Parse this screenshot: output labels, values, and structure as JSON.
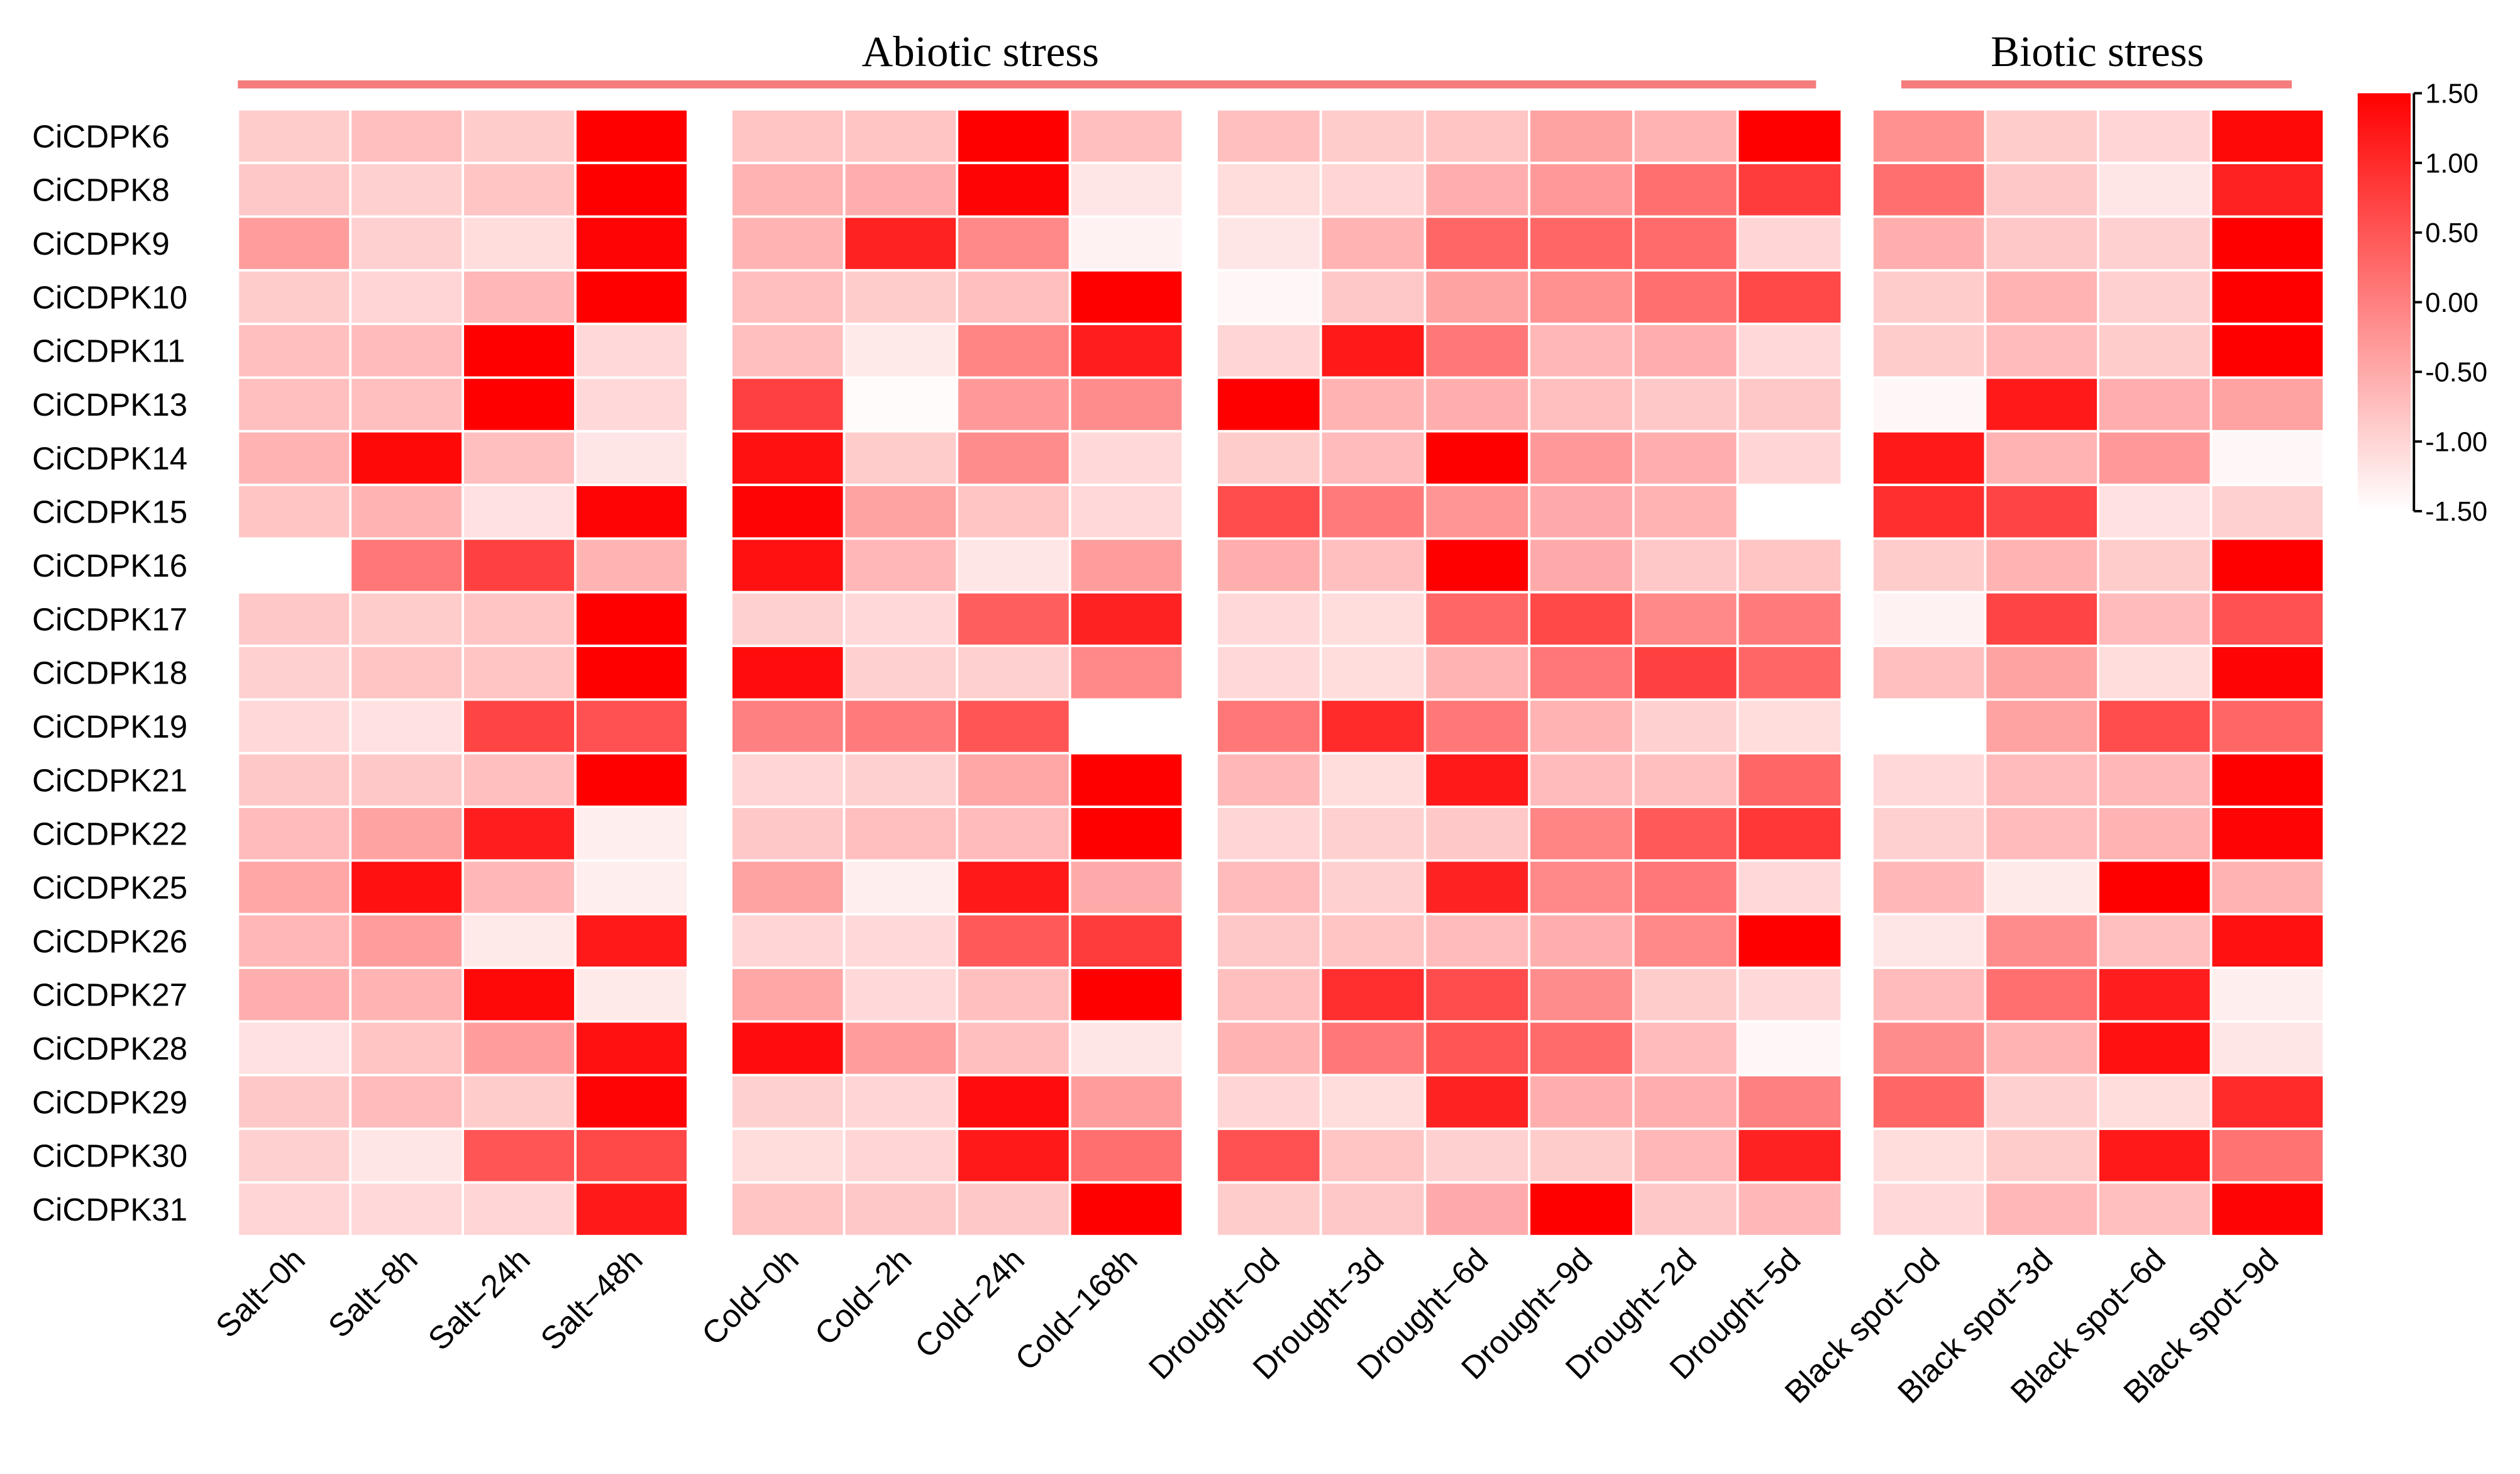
{
  "chart_data": {
    "type": "heatmap",
    "title": "",
    "groups": [
      {
        "label": "Abiotic stress",
        "columns": [
          "Salt-0h",
          "Salt-8h",
          "Salt-24h",
          "Salt-48h",
          "Cold-0h",
          "Cold-2h",
          "Cold-24h",
          "Cold-168h",
          "Drought-0d",
          "Drought-3d",
          "Drought-6d",
          "Drought-9d",
          "Drought-2d",
          "Drought-5d"
        ]
      },
      {
        "label": "Biotic stress",
        "columns": [
          "Black spot-0d",
          "Black spot-3d",
          "Black spot-6d",
          "Black spot-9d"
        ]
      }
    ],
    "columns": [
      "Salt−0h",
      "Salt−8h",
      "Salt−24h",
      "Salt−48h",
      "Cold−0h",
      "Cold−2h",
      "Cold−24h",
      "Cold−168h",
      "Drought−0d",
      "Drought−3d",
      "Drought−6d",
      "Drought−9d",
      "Drought−2d",
      "Drought−5d",
      "Black spot−0d",
      "Black spot−3d",
      "Black spot−6d",
      "Black spot−9d"
    ],
    "rows": [
      "CiCDPK6",
      "CiCDPK8",
      "CiCDPK9",
      "CiCDPK10",
      "CiCDPK11",
      "CiCDPK13",
      "CiCDPK14",
      "CiCDPK15",
      "CiCDPK16",
      "CiCDPK17",
      "CiCDPK18",
      "CiCDPK19",
      "CiCDPK21",
      "CiCDPK22",
      "CiCDPK25",
      "CiCDPK26",
      "CiCDPK27",
      "CiCDPK28",
      "CiCDPK29",
      "CiCDPK30",
      "CiCDPK31"
    ],
    "values": [
      [
        -0.9,
        -0.75,
        -0.9,
        1.5,
        -0.8,
        -0.8,
        1.5,
        -0.75,
        -0.75,
        -0.9,
        -0.8,
        -0.4,
        -0.6,
        1.5,
        -0.2,
        -0.9,
        -1.0,
        1.4
      ],
      [
        -0.85,
        -0.95,
        -0.8,
        1.5,
        -0.6,
        -0.55,
        1.45,
        -1.2,
        -1.1,
        -1.0,
        -0.55,
        -0.3,
        0.2,
        0.8,
        0.2,
        -0.85,
        -1.2,
        1.1
      ],
      [
        -0.35,
        -0.95,
        -1.1,
        1.45,
        -0.6,
        1.1,
        -0.1,
        -1.35,
        -1.2,
        -0.6,
        0.3,
        0.3,
        0.25,
        -1.0,
        -0.55,
        -0.85,
        -0.95,
        1.5
      ],
      [
        -0.9,
        -1.0,
        -0.65,
        1.5,
        -0.75,
        -0.9,
        -0.75,
        1.5,
        -1.4,
        -0.85,
        -0.4,
        -0.2,
        0.2,
        0.65,
        -0.9,
        -0.6,
        -0.95,
        1.5
      ],
      [
        -0.75,
        -0.7,
        1.5,
        -1.05,
        -0.75,
        -1.25,
        -0.05,
        1.15,
        -1.0,
        1.2,
        0.1,
        -0.65,
        -0.55,
        -1.05,
        -0.9,
        -0.7,
        -0.9,
        1.5
      ],
      [
        -0.75,
        -0.75,
        1.5,
        -1.05,
        0.75,
        -1.45,
        -0.3,
        -0.15,
        1.5,
        -0.6,
        -0.55,
        -0.75,
        -0.85,
        -0.85,
        -1.4,
        1.2,
        -0.55,
        -0.4
      ],
      [
        -0.6,
        1.4,
        -0.75,
        -1.2,
        1.3,
        -0.9,
        -0.15,
        -1.05,
        -0.9,
        -0.7,
        1.5,
        -0.3,
        -0.55,
        -1.0,
        1.2,
        -0.6,
        -0.3,
        -1.4
      ],
      [
        -0.8,
        -0.6,
        -1.15,
        1.45,
        1.45,
        -0.4,
        -0.8,
        -1.05,
        0.6,
        0.05,
        -0.25,
        -0.5,
        -0.6,
        -1.5,
        0.95,
        0.7,
        -1.15,
        -0.95
      ],
      [
        -1.5,
        0.1,
        0.75,
        -0.6,
        1.3,
        -0.65,
        -1.2,
        -0.35,
        -0.55,
        -0.75,
        1.5,
        -0.5,
        -0.85,
        -0.8,
        -0.9,
        -0.6,
        -0.9,
        1.5
      ],
      [
        -0.85,
        -0.9,
        -0.8,
        1.5,
        -0.95,
        -1.05,
        0.4,
        1.1,
        -1.05,
        -1.1,
        0.3,
        0.65,
        -0.1,
        0.05,
        -1.35,
        0.7,
        -0.7,
        0.55
      ],
      [
        -0.95,
        -0.8,
        -0.8,
        1.5,
        1.35,
        -0.95,
        -0.95,
        -0.1,
        -1.05,
        -1.1,
        -0.6,
        0.1,
        0.75,
        0.3,
        -0.75,
        -0.4,
        -1.1,
        1.45
      ],
      [
        -1.05,
        -1.15,
        0.7,
        0.55,
        0.0,
        0.05,
        0.5,
        -1.5,
        0.1,
        1.0,
        0.1,
        -0.6,
        -0.95,
        -1.1,
        -1.5,
        -0.4,
        0.6,
        0.3
      ],
      [
        -0.85,
        -0.85,
        -0.75,
        1.5,
        -1.0,
        -0.95,
        -0.45,
        1.5,
        -0.65,
        -1.1,
        1.2,
        -0.7,
        -0.75,
        0.3,
        -1.05,
        -0.7,
        -0.65,
        1.5
      ],
      [
        -0.7,
        -0.4,
        1.15,
        -1.3,
        -0.85,
        -0.75,
        -0.7,
        1.5,
        -1.0,
        -0.95,
        -0.85,
        -0.05,
        0.45,
        0.85,
        -0.95,
        -0.7,
        -0.6,
        1.45
      ],
      [
        -0.45,
        1.3,
        -0.65,
        -1.3,
        -0.4,
        -1.3,
        1.2,
        -0.5,
        -0.7,
        -0.95,
        1.1,
        -0.1,
        0.1,
        -1.05,
        -0.65,
        -1.25,
        1.5,
        -0.6
      ],
      [
        -0.65,
        -0.35,
        -1.25,
        1.2,
        -1.0,
        -1.05,
        0.45,
        0.8,
        -0.85,
        -0.8,
        -0.7,
        -0.55,
        -0.1,
        1.5,
        -1.2,
        -0.15,
        -0.75,
        1.3
      ],
      [
        -0.55,
        -0.6,
        1.4,
        -1.25,
        -0.45,
        -1.05,
        -0.75,
        1.5,
        -0.75,
        0.95,
        0.6,
        -0.15,
        -0.9,
        -1.05,
        -0.7,
        0.2,
        1.15,
        -1.3
      ],
      [
        -1.15,
        -0.8,
        -0.35,
        1.3,
        1.35,
        -0.35,
        -0.75,
        -1.2,
        -0.6,
        0.1,
        0.5,
        0.25,
        -0.7,
        -1.4,
        -0.15,
        -0.6,
        1.3,
        -1.2
      ],
      [
        -0.85,
        -0.7,
        -0.9,
        1.45,
        -0.95,
        -1.0,
        1.35,
        -0.35,
        -1.0,
        -1.1,
        1.1,
        -0.55,
        -0.55,
        0.0,
        0.3,
        -0.95,
        -1.1,
        1.0
      ],
      [
        -0.95,
        -1.2,
        0.5,
        0.65,
        -1.1,
        -1.0,
        1.2,
        0.2,
        0.55,
        -0.8,
        -0.95,
        -0.9,
        -0.65,
        1.1,
        -1.1,
        -0.9,
        1.2,
        0.15
      ],
      [
        -1.0,
        -1.05,
        -1.0,
        1.2,
        -0.8,
        -0.85,
        -0.85,
        1.5,
        -0.9,
        -0.85,
        -0.5,
        1.5,
        -0.85,
        -0.65,
        -1.05,
        -0.65,
        -0.75,
        1.45
      ]
    ],
    "colorbar": {
      "min": -1.5,
      "max": 1.5,
      "low_color": "#ffffff",
      "high_color": "#ff0000",
      "ticks": [
        "1.50",
        "1.00",
        "0.50",
        "0.00",
        "-0.50",
        "-1.00",
        "-1.50"
      ]
    },
    "group_bar_color": "#f47c7c"
  }
}
